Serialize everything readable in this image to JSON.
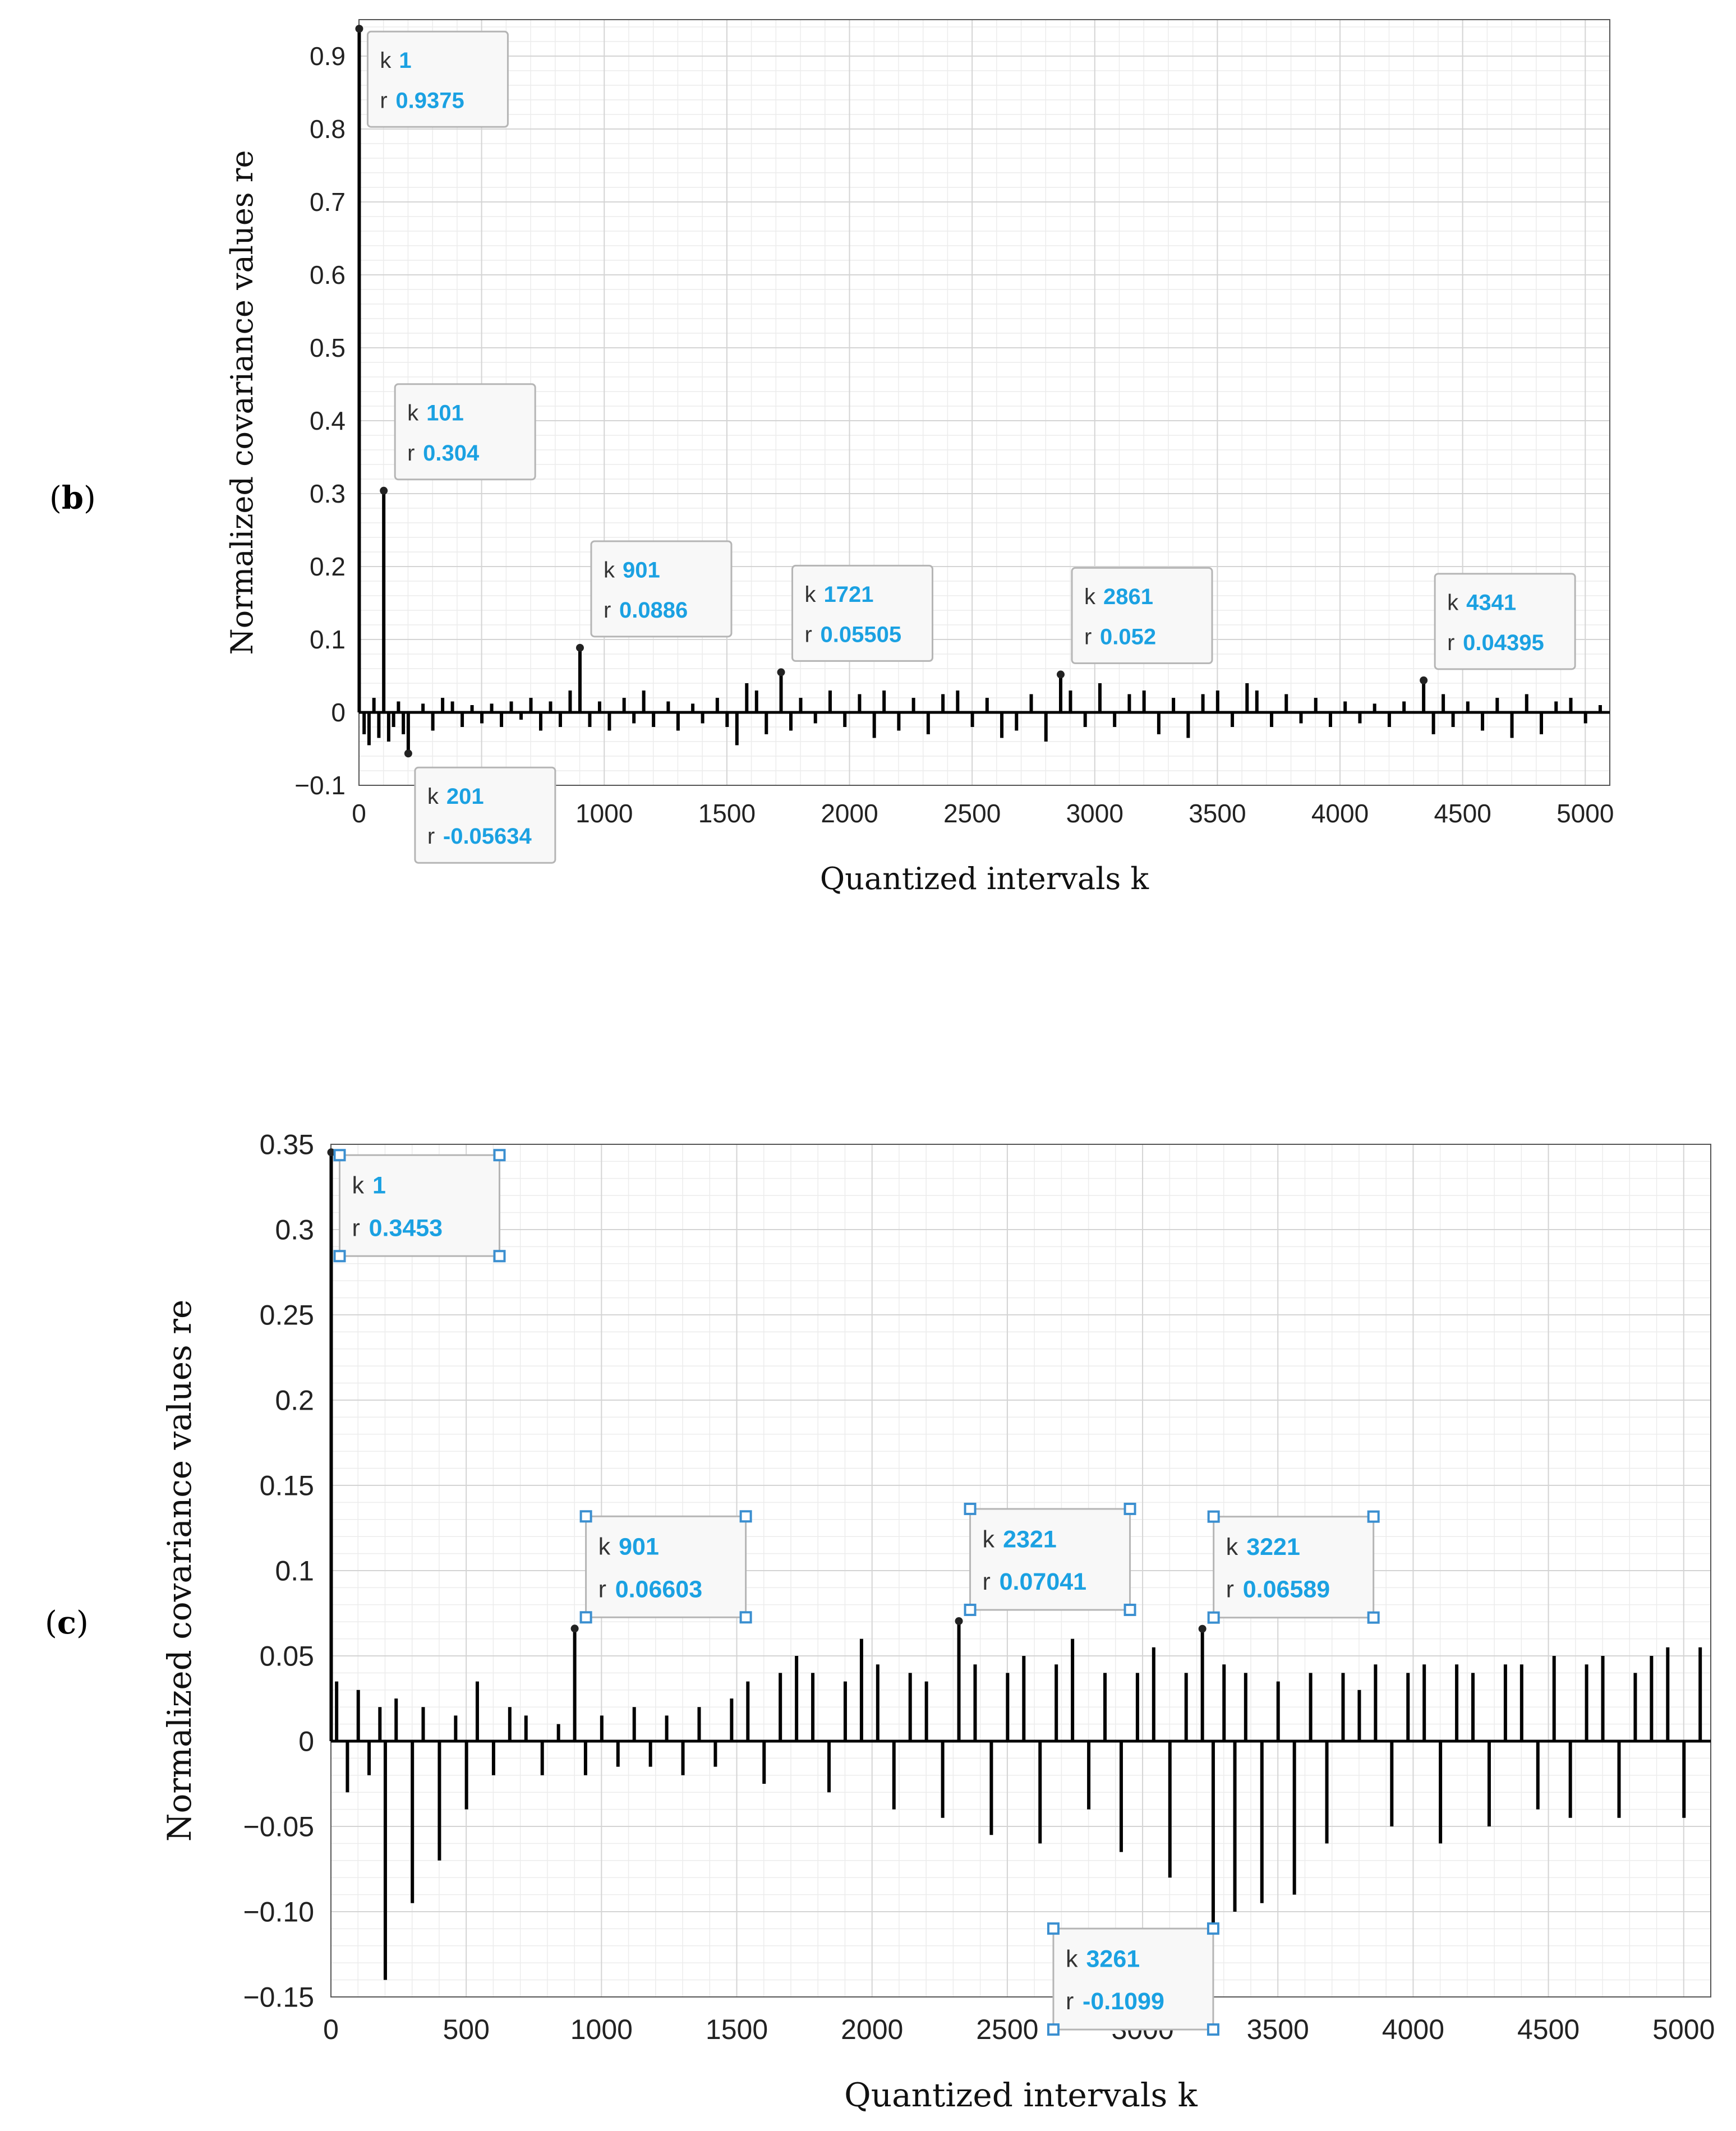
{
  "figure": {
    "panels": [
      {
        "label_open": "(",
        "label_letter": "b",
        "label_close": ")"
      },
      {
        "label_open": "(",
        "label_letter": "c",
        "label_close": ")"
      }
    ]
  },
  "colors": {
    "stem": "#000000",
    "annotation_value": "#1ba1e2",
    "annotation_key": "#333333",
    "grid_major": "#d4d4d4",
    "grid_minor": "#ececec",
    "handle": "#3b8fd0",
    "box_border": "#b5b5b5"
  },
  "chart_data": [
    {
      "type": "stem",
      "panel": "b",
      "title": "",
      "xlabel": "Quantized intervals k",
      "ylabel": "Normalized covariance values re",
      "xlim": [
        0,
        5100
      ],
      "ylim": [
        -0.1,
        0.95
      ],
      "xticks": [
        0,
        500,
        1000,
        1500,
        2000,
        2500,
        3000,
        3500,
        4000,
        4500,
        5000
      ],
      "xtick_labels": [
        "0",
        "500",
        "1000",
        "1500",
        "2000",
        "2500",
        "3000",
        "3500",
        "4000",
        "4500",
        "5000"
      ],
      "yticks": [
        -0.1,
        0,
        0.1,
        0.2,
        0.3,
        0.4,
        0.5,
        0.6,
        0.7,
        0.8,
        0.9
      ],
      "ytick_labels": [
        "−0.1",
        "0",
        "0.1",
        "0.2",
        "0.3",
        "0.4",
        "0.5",
        "0.6",
        "0.7",
        "0.8",
        "0.9"
      ],
      "grid": true,
      "series": [
        {
          "name": "re",
          "k": [
            1,
            21,
            41,
            61,
            81,
            101,
            121,
            141,
            161,
            181,
            201,
            261,
            301,
            341,
            381,
            421,
            461,
            501,
            541,
            581,
            621,
            661,
            701,
            741,
            781,
            821,
            861,
            901,
            941,
            981,
            1021,
            1081,
            1121,
            1161,
            1201,
            1261,
            1301,
            1361,
            1401,
            1461,
            1501,
            1541,
            1581,
            1621,
            1661,
            1721,
            1761,
            1801,
            1861,
            1921,
            1981,
            2041,
            2101,
            2141,
            2201,
            2261,
            2321,
            2381,
            2441,
            2501,
            2561,
            2621,
            2681,
            2741,
            2801,
            2861,
            2901,
            2961,
            3021,
            3081,
            3141,
            3201,
            3261,
            3321,
            3381,
            3441,
            3501,
            3561,
            3621,
            3661,
            3721,
            3781,
            3841,
            3901,
            3961,
            4021,
            4081,
            4141,
            4201,
            4261,
            4341,
            4381,
            4421,
            4461,
            4521,
            4581,
            4641,
            4701,
            4761,
            4821,
            4881,
            4941,
            5001,
            5061
          ],
          "values": [
            0.9375,
            -0.03,
            -0.045,
            0.02,
            -0.035,
            0.304,
            -0.04,
            -0.02,
            0.015,
            -0.03,
            -0.05634,
            0.012,
            -0.025,
            0.02,
            0.015,
            -0.02,
            0.01,
            -0.015,
            0.012,
            -0.02,
            0.015,
            -0.01,
            0.02,
            -0.025,
            0.015,
            -0.02,
            0.03,
            0.0886,
            -0.02,
            0.015,
            -0.025,
            0.02,
            -0.015,
            0.03,
            -0.02,
            0.015,
            -0.025,
            0.012,
            -0.015,
            0.02,
            -0.02,
            -0.045,
            0.04,
            0.03,
            -0.03,
            0.05505,
            -0.025,
            0.02,
            -0.015,
            0.03,
            -0.02,
            0.025,
            -0.035,
            0.03,
            -0.025,
            0.02,
            -0.03,
            0.025,
            0.03,
            -0.02,
            0.02,
            -0.035,
            -0.025,
            0.025,
            -0.04,
            0.052,
            0.03,
            -0.02,
            0.04,
            -0.02,
            0.025,
            0.03,
            -0.03,
            0.02,
            -0.035,
            0.025,
            0.03,
            -0.02,
            0.04,
            0.03,
            -0.02,
            0.025,
            -0.015,
            0.02,
            -0.02,
            0.015,
            -0.015,
            0.012,
            -0.02,
            0.015,
            0.04395,
            -0.03,
            0.025,
            -0.02,
            0.015,
            -0.025,
            0.02,
            -0.035,
            0.025,
            -0.03,
            0.015,
            0.02,
            -0.015,
            0.01
          ]
        }
      ],
      "annotations": [
        {
          "k_key": "k",
          "k_value": "1",
          "r_key": "r",
          "r_value": "0.9375",
          "x": 1,
          "y": 0.9375,
          "place": "right-below"
        },
        {
          "k_key": "k",
          "k_value": "101",
          "r_key": "r",
          "r_value": "0.304",
          "x": 101,
          "y": 0.304,
          "place": "above-right"
        },
        {
          "k_key": "k",
          "k_value": "201",
          "r_key": "r",
          "r_value": "-0.05634",
          "x": 201,
          "y": -0.05634,
          "place": "below-right"
        },
        {
          "k_key": "k",
          "k_value": "901",
          "r_key": "r",
          "r_value": "0.0886",
          "x": 901,
          "y": 0.0886,
          "place": "above-right"
        },
        {
          "k_key": "k",
          "k_value": "1721",
          "r_key": "r",
          "r_value": "0.05505",
          "x": 1721,
          "y": 0.05505,
          "place": "above-right"
        },
        {
          "k_key": "k",
          "k_value": "2861",
          "r_key": "r",
          "r_value": "0.052",
          "x": 2861,
          "y": 0.052,
          "place": "above-right"
        },
        {
          "k_key": "k",
          "k_value": "4341",
          "r_key": "r",
          "r_value": "0.04395",
          "x": 4341,
          "y": 0.04395,
          "place": "above-right"
        }
      ]
    },
    {
      "type": "stem",
      "panel": "c",
      "title": "",
      "xlabel": "Quantized intervals k",
      "ylabel": "Normalized covariance values re",
      "xlim": [
        0,
        5100
      ],
      "ylim": [
        -0.15,
        0.35
      ],
      "xticks": [
        0,
        500,
        1000,
        1500,
        2000,
        2500,
        3000,
        3500,
        4000,
        4500,
        5000
      ],
      "xtick_labels": [
        "0",
        "500",
        "1000",
        "1500",
        "2000",
        "2500",
        "3000",
        "3500",
        "4000",
        "4500",
        "5000"
      ],
      "yticks": [
        -0.15,
        -0.1,
        -0.05,
        0,
        0.05,
        0.1,
        0.15,
        0.2,
        0.25,
        0.3,
        0.35
      ],
      "ytick_labels": [
        "−0.15",
        "−0.10",
        "−0.05",
        "0",
        "0.05",
        "0.1",
        "0.15",
        "0.2",
        "0.25",
        "0.3",
        "0.35"
      ],
      "grid": true,
      "series": [
        {
          "name": "re",
          "k": [
            1,
            21,
            61,
            101,
            141,
            181,
            201,
            241,
            301,
            341,
            401,
            461,
            501,
            541,
            601,
            661,
            721,
            781,
            841,
            901,
            941,
            1001,
            1061,
            1121,
            1181,
            1241,
            1301,
            1361,
            1421,
            1481,
            1541,
            1601,
            1661,
            1721,
            1781,
            1841,
            1901,
            1961,
            2021,
            2081,
            2141,
            2201,
            2261,
            2321,
            2381,
            2441,
            2501,
            2561,
            2621,
            2681,
            2741,
            2801,
            2861,
            2921,
            2981,
            3041,
            3101,
            3161,
            3221,
            3261,
            3301,
            3341,
            3381,
            3441,
            3501,
            3561,
            3621,
            3681,
            3741,
            3801,
            3861,
            3921,
            3981,
            4041,
            4101,
            4161,
            4221,
            4281,
            4341,
            4401,
            4461,
            4521,
            4581,
            4641,
            4701,
            4761,
            4821,
            4881,
            4941,
            5001,
            5061
          ],
          "values": [
            0.3453,
            0.035,
            -0.03,
            0.03,
            -0.02,
            0.02,
            -0.14,
            0.025,
            -0.095,
            0.02,
            -0.07,
            0.015,
            -0.04,
            0.035,
            -0.02,
            0.02,
            0.015,
            -0.02,
            0.01,
            0.06603,
            -0.02,
            0.015,
            -0.015,
            0.02,
            -0.015,
            0.015,
            -0.02,
            0.02,
            -0.015,
            0.025,
            0.035,
            -0.025,
            0.04,
            0.05,
            0.04,
            -0.03,
            0.035,
            0.06,
            0.045,
            -0.04,
            0.04,
            0.035,
            -0.045,
            0.07041,
            0.045,
            -0.055,
            0.04,
            0.05,
            -0.06,
            0.045,
            0.06,
            -0.04,
            0.04,
            -0.065,
            0.04,
            0.055,
            -0.08,
            0.04,
            0.06589,
            -0.1099,
            0.045,
            -0.1,
            0.04,
            -0.095,
            0.035,
            -0.09,
            0.04,
            -0.06,
            0.04,
            0.03,
            0.045,
            -0.05,
            0.04,
            0.045,
            -0.06,
            0.045,
            0.04,
            -0.05,
            0.045,
            0.045,
            -0.04,
            0.05,
            -0.045,
            0.045,
            0.05,
            -0.045,
            0.04,
            0.05,
            0.055,
            -0.045,
            0.055
          ]
        }
      ],
      "annotations": [
        {
          "k_key": "k",
          "k_value": "1",
          "r_key": "r",
          "r_value": "0.3453",
          "x": 1,
          "y": 0.3453,
          "place": "right-below"
        },
        {
          "k_key": "k",
          "k_value": "901",
          "r_key": "r",
          "r_value": "0.06603",
          "x": 901,
          "y": 0.06603,
          "place": "above-right"
        },
        {
          "k_key": "k",
          "k_value": "2321",
          "r_key": "r",
          "r_value": "0.07041",
          "x": 2321,
          "y": 0.07041,
          "place": "above-right"
        },
        {
          "k_key": "k",
          "k_value": "3221",
          "r_key": "r",
          "r_value": "0.06589",
          "x": 3221,
          "y": 0.06589,
          "place": "above-right"
        },
        {
          "k_key": "k",
          "k_value": "3261",
          "r_key": "r",
          "r_value": "-0.1099",
          "x": 3261,
          "y": -0.1099,
          "place": "below-left"
        }
      ]
    }
  ]
}
